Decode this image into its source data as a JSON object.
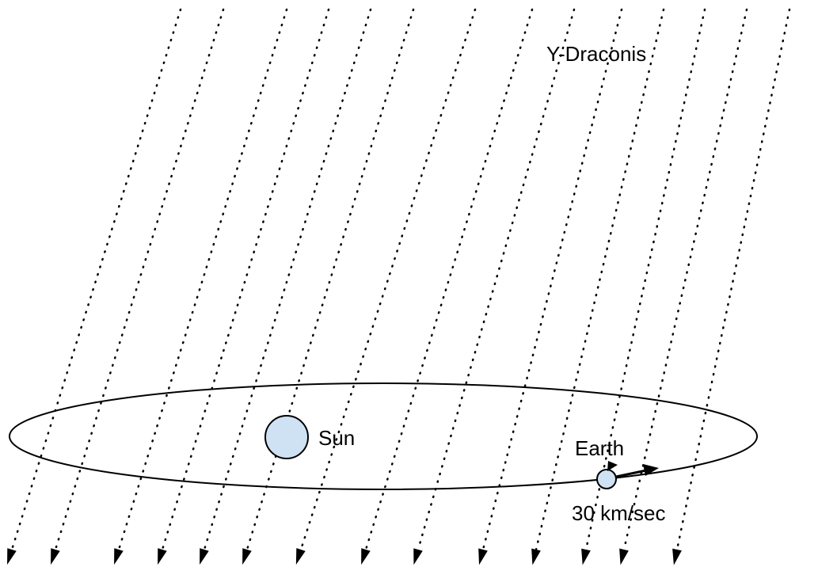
{
  "labels": {
    "star": "Y-Draconis",
    "sun": "Sun",
    "earth": "Earth",
    "speed": "30 km/sec"
  }
}
